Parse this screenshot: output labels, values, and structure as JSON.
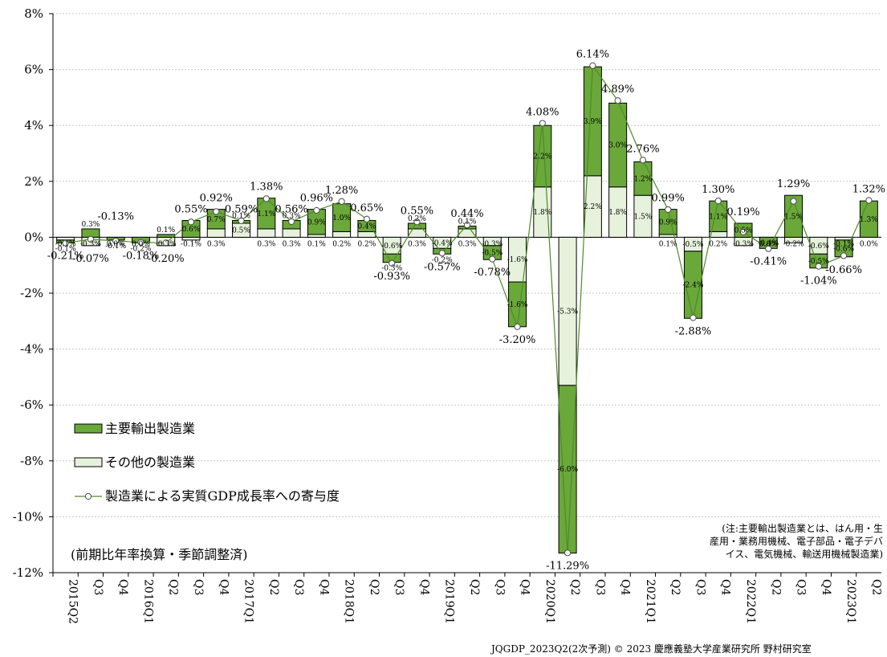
{
  "chart_data": {
    "type": "bar",
    "stacked": true,
    "ylim": [
      -12,
      8
    ],
    "yticks": [
      "8%",
      "6%",
      "4%",
      "2%",
      "0%",
      "-2%",
      "-4%",
      "-6%",
      "-8%",
      "-10%",
      "-12%"
    ],
    "grid": "horizontal dashed",
    "categories": [
      "2015Q2",
      "Q3",
      "Q4",
      "2016Q1",
      "Q2",
      "Q3",
      "Q4",
      "2017Q1",
      "Q2",
      "Q3",
      "Q4",
      "2018Q1",
      "Q2",
      "Q3",
      "Q4",
      "2019Q1",
      "Q2",
      "Q3",
      "Q4",
      "2020Q1",
      "Q2",
      "Q3",
      "Q4",
      "2021Q1",
      "Q2",
      "Q3",
      "Q4",
      "2022Q1",
      "Q2",
      "Q3",
      "Q4",
      "2023Q1",
      "Q2"
    ],
    "series": [
      {
        "name": "主要輸出製造業",
        "color": "#6aa83a",
        "values": [
          -0.1,
          0.3,
          -0.1,
          -0.2,
          0.1,
          0.6,
          0.7,
          0.1,
          1.1,
          0.3,
          0.9,
          1.0,
          0.4,
          -0.3,
          0.2,
          -0.2,
          0.1,
          -0.5,
          -1.6,
          2.2,
          -6.0,
          3.9,
          3.0,
          1.2,
          0.9,
          -2.4,
          1.1,
          0.5,
          -0.4,
          1.5,
          -0.5,
          -0.6,
          1.3
        ],
        "labels": [
          "-0.1%",
          "0.3%",
          "-0.1%",
          "-0.2%",
          "0.1%",
          "0.6%",
          "0.7%",
          "0.1%",
          "1.1%",
          "0.3%",
          "0.9%",
          "1.0%",
          "0.4%",
          "-0.3%",
          "0.2%",
          "-0.2%",
          "0.1%",
          "-0.5%",
          "-1.6%",
          "2.2%",
          "-6.0%",
          "3.9%",
          "3.0%",
          "1.2%",
          "0.9%",
          "-2.4%",
          "1.1%",
          "0.5%",
          "-0.4%",
          "1.5%",
          "-0.5%",
          "-0.6%",
          "1.3%"
        ]
      },
      {
        "name": "その他の製造業",
        "color": "#e6f2dc",
        "values": [
          -0.1,
          -0.3,
          0.0,
          0.0,
          -0.3,
          -0.1,
          0.3,
          0.5,
          0.3,
          0.3,
          0.1,
          0.2,
          0.2,
          -0.6,
          0.3,
          -0.4,
          0.3,
          -0.3,
          -1.6,
          1.8,
          -5.3,
          2.2,
          1.8,
          1.5,
          0.1,
          -0.5,
          0.2,
          -0.3,
          0.0,
          -0.2,
          -0.6,
          -0.1,
          0.0
        ],
        "labels": [
          "-0.1%",
          "-0.3%",
          "0.0%",
          "0.0%",
          "-0.3%",
          "-0.1%",
          "0.3%",
          "0.5%",
          "0.3%",
          "0.3%",
          "0.1%",
          "0.2%",
          "0.2%",
          "-0.6%",
          "0.3%",
          "-0.4%",
          "0.3%",
          "-0.3%",
          "-1.6%",
          "1.8%",
          "-5.3%",
          "2.2%",
          "1.8%",
          "1.5%",
          "0.1%",
          "-0.5%",
          "0.2%",
          "-0.3%",
          "0.0%",
          "-0.2%",
          "-0.6%",
          "-0.1%",
          "0.0%"
        ]
      },
      {
        "name": "製造業による実質GDP成長率への寄与度",
        "type": "line",
        "color": "#4e8a2a",
        "values": [
          -0.21,
          -0.07,
          -0.13,
          -0.18,
          -0.2,
          0.55,
          0.92,
          0.59,
          1.38,
          0.56,
          0.96,
          1.28,
          0.65,
          -0.93,
          0.55,
          -0.57,
          0.44,
          -0.78,
          -3.2,
          4.08,
          -11.29,
          6.14,
          4.89,
          2.76,
          0.99,
          -2.88,
          1.3,
          0.19,
          -0.41,
          1.29,
          -1.04,
          -0.66,
          1.32
        ],
        "labels": [
          "-0.21%",
          "-0.07%",
          "-0.13%",
          "-0.18%",
          "-0.20%",
          "0.55%",
          "0.92%",
          "0.59%",
          "1.38%",
          "0.56%",
          "0.96%",
          "1.28%",
          "0.65%",
          "-0.93%",
          "0.55%",
          "-0.57%",
          "0.44%",
          "-0.78%",
          "-3.20%",
          "4.08%",
          "-11.29%",
          "6.14%",
          "4.89%",
          "2.76%",
          "0.99%",
          "-2.88%",
          "1.30%",
          "0.19%",
          "-0.41%",
          "1.29%",
          "-1.04%",
          "-0.66%",
          "1.32%"
        ]
      }
    ]
  },
  "unit_note": "(前期比年率換算・季節調整済)",
  "note": {
    "line1": "(注:主要輸出製造業とは、はん用・生",
    "line2": "産用・業務用機械、電子部品・電子デバ",
    "line3": "イス、電気機械、輸送用機械製造業)"
  },
  "footer": "JQGDP_2023Q2(2次予測)  © 2023 慶應義塾大学産業研究所 野村研究室"
}
